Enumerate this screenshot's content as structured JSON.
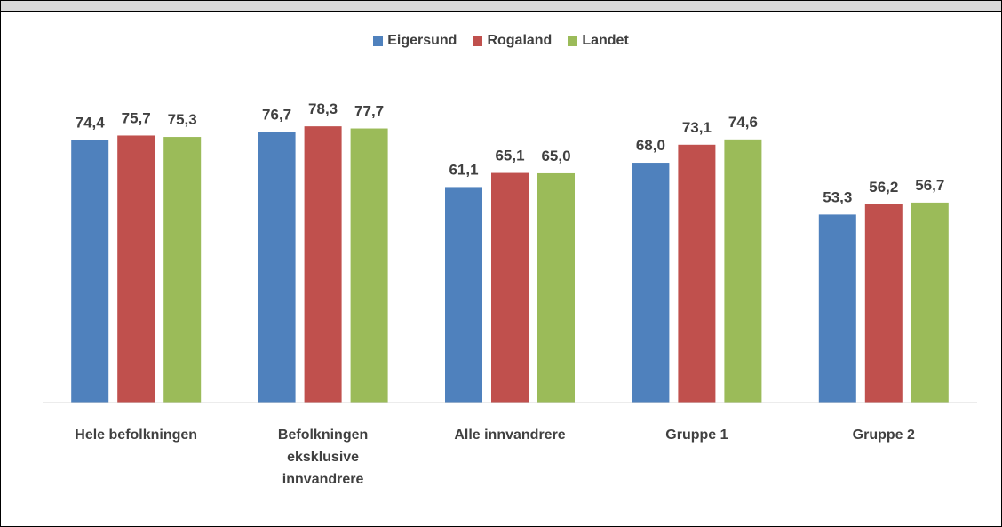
{
  "chart_data": {
    "type": "bar",
    "categories": [
      "Hele befolkningen",
      "Befolkningen eksklusive innvandrere",
      "Alle innvandrere",
      "Gruppe 1",
      "Gruppe 2"
    ],
    "series": [
      {
        "name": "Eigersund",
        "color": "#4f81bd",
        "values": [
          74.4,
          76.7,
          61.1,
          68.0,
          53.3
        ],
        "value_labels": [
          "74,4",
          "76,7",
          "61,1",
          "68,0",
          "53,3"
        ]
      },
      {
        "name": "Rogaland",
        "color": "#c0504d",
        "values": [
          75.7,
          78.3,
          65.1,
          73.1,
          56.2
        ],
        "value_labels": [
          "75,7",
          "78,3",
          "65,1",
          "73,1",
          "56,2"
        ]
      },
      {
        "name": "Landet",
        "color": "#9bbb59",
        "values": [
          75.3,
          77.7,
          65.0,
          74.6,
          56.7
        ],
        "value_labels": [
          "75,3",
          "77,7",
          "65,0",
          "74,6",
          "56,7"
        ]
      }
    ],
    "ylim": [
      0,
      100
    ],
    "legend": "top"
  }
}
